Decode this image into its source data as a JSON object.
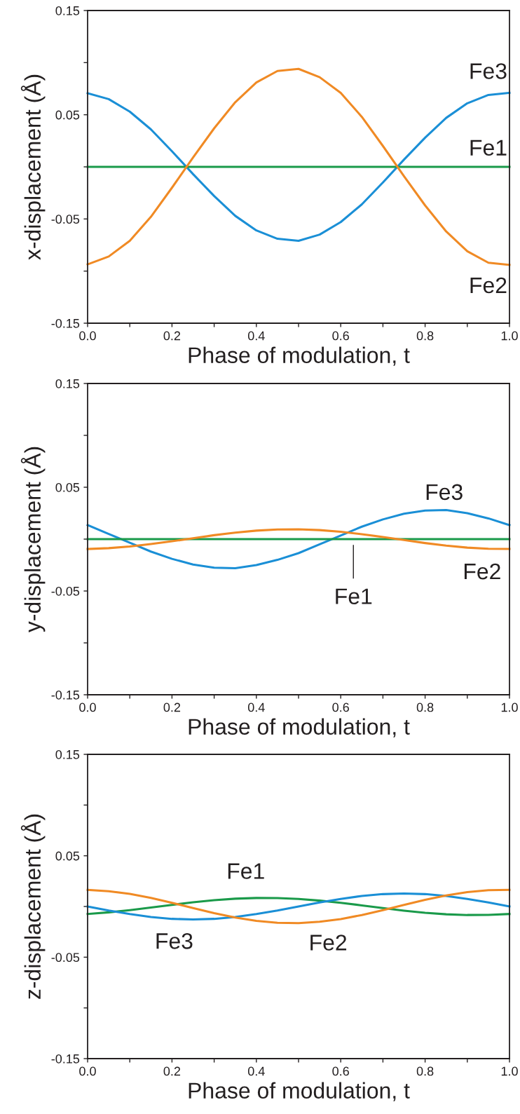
{
  "chart_data": [
    {
      "type": "line",
      "xlabel": "Phase of modulation, t",
      "ylabel": "x-displacement (Å)",
      "x": [
        0,
        0.05,
        0.1,
        0.15,
        0.2,
        0.25,
        0.3,
        0.35,
        0.4,
        0.45,
        0.5,
        0.55,
        0.6,
        0.65,
        0.7,
        0.75,
        0.8,
        0.85,
        0.9,
        0.95,
        1.0
      ],
      "series": [
        {
          "name": "Fe3",
          "color": "#1a8fd6",
          "values": [
            0.0707,
            0.065,
            0.053,
            0.036,
            0.015,
            -0.007,
            -0.028,
            -0.047,
            -0.061,
            -0.069,
            -0.071,
            -0.065,
            -0.053,
            -0.036,
            -0.015,
            0.007,
            0.028,
            0.047,
            0.061,
            0.069,
            0.071
          ]
        },
        {
          "name": "Fe1",
          "color": "#1a9a4a",
          "values": [
            0,
            0,
            0,
            0,
            0,
            0,
            0,
            0,
            0,
            0,
            0,
            0,
            0,
            0,
            0,
            0,
            0,
            0,
            0,
            0,
            0
          ]
        },
        {
          "name": "Fe2",
          "color": "#f08a24",
          "values": [
            -0.0936,
            -0.086,
            -0.071,
            -0.048,
            -0.02,
            0.009,
            0.037,
            0.062,
            0.081,
            0.092,
            0.094,
            0.086,
            0.071,
            0.048,
            0.02,
            -0.009,
            -0.037,
            -0.062,
            -0.081,
            -0.092,
            -0.094
          ]
        }
      ],
      "xlim": [
        0,
        1.0
      ],
      "ylim": [
        -0.15,
        0.15
      ],
      "xticks": [
        {
          "value": 0,
          "label": "0.0"
        },
        {
          "value": 0.1,
          "label": null
        },
        {
          "value": 0.2,
          "label": "0.2"
        },
        {
          "value": 0.3,
          "label": null
        },
        {
          "value": 0.4,
          "label": "0.4"
        },
        {
          "value": 0.5,
          "label": null
        },
        {
          "value": 0.6,
          "label": "0.6"
        },
        {
          "value": 0.7,
          "label": null
        },
        {
          "value": 0.8,
          "label": "0.8"
        },
        {
          "value": 0.9,
          "label": null
        },
        {
          "value": 1.0,
          "label": "1.0"
        }
      ],
      "yticks": [
        -0.15,
        {
          "value": -0.1,
          "label": null
        },
        -0.05,
        {
          "value": 0,
          "label": null
        },
        0.05,
        {
          "value": 0.1,
          "label": null
        },
        0.15
      ],
      "grid": false,
      "legend": false,
      "marker": "none",
      "line_style": "solid"
    },
    {
      "type": "line",
      "xlabel": "Phase of modulation, t",
      "ylabel": "y-displacement (Å)",
      "x": [
        0,
        0.05,
        0.1,
        0.15,
        0.2,
        0.25,
        0.3,
        0.35,
        0.4,
        0.45,
        0.5,
        0.55,
        0.6,
        0.65,
        0.7,
        0.75,
        0.8,
        0.85,
        0.9,
        0.95,
        1.0
      ],
      "series": [
        {
          "name": "Fe3",
          "color": "#1a8fd6",
          "values": [
            0.0135,
            0.005,
            -0.0035,
            -0.012,
            -0.019,
            -0.0245,
            -0.0275,
            -0.028,
            -0.025,
            -0.02,
            -0.0135,
            -0.005,
            0.0035,
            0.012,
            0.019,
            0.0245,
            0.0275,
            0.028,
            0.025,
            0.02,
            0.0135
          ]
        },
        {
          "name": "Fe1",
          "color": "#1a9a4a",
          "values": [
            0,
            0,
            0,
            0,
            0,
            0,
            0,
            0,
            0,
            0,
            0,
            0,
            0,
            0,
            0,
            0,
            0,
            0,
            0,
            0,
            0
          ]
        },
        {
          "name": "Fe2",
          "color": "#f08a24",
          "values": [
            -0.0095,
            -0.0087,
            -0.0071,
            -0.0048,
            -0.0021,
            0.0009,
            0.0038,
            0.0063,
            0.0082,
            0.0093,
            0.0095,
            0.0087,
            0.0071,
            0.0048,
            0.0021,
            -0.0009,
            -0.0038,
            -0.0063,
            -0.0082,
            -0.0093,
            -0.0095
          ]
        }
      ],
      "xlim": [
        0,
        1.0
      ],
      "ylim": [
        -0.15,
        0.15
      ],
      "xticks": [
        {
          "value": 0,
          "label": "0.0"
        },
        {
          "value": 0.1,
          "label": null
        },
        {
          "value": 0.2,
          "label": "0.2"
        },
        {
          "value": 0.3,
          "label": null
        },
        {
          "value": 0.4,
          "label": "0.4"
        },
        {
          "value": 0.5,
          "label": null
        },
        {
          "value": 0.6,
          "label": "0.6"
        },
        {
          "value": 0.7,
          "label": null
        },
        {
          "value": 0.8,
          "label": "0.8"
        },
        {
          "value": 0.9,
          "label": null
        },
        {
          "value": 1.0,
          "label": "1.0"
        }
      ],
      "yticks": [
        -0.15,
        {
          "value": -0.1,
          "label": null
        },
        -0.05,
        {
          "value": 0,
          "label": null
        },
        0.05,
        {
          "value": 0.1,
          "label": null
        },
        0.15
      ],
      "grid": false,
      "legend": false,
      "marker": "none",
      "line_style": "solid"
    },
    {
      "type": "line",
      "xlabel": "Phase of modulation, t",
      "ylabel": "z-displacement (Å)",
      "x": [
        0,
        0.05,
        0.1,
        0.15,
        0.2,
        0.25,
        0.3,
        0.35,
        0.4,
        0.45,
        0.5,
        0.55,
        0.6,
        0.65,
        0.7,
        0.75,
        0.8,
        0.85,
        0.9,
        0.95,
        1.0
      ],
      "series": [
        {
          "name": "Fe1",
          "color": "#1a9a4a",
          "values": [
            -0.0074,
            -0.0058,
            -0.0036,
            -0.0011,
            0.0016,
            0.0041,
            0.0062,
            0.0077,
            0.0084,
            0.0083,
            0.0074,
            0.0058,
            0.0036,
            0.0011,
            -0.0016,
            -0.0041,
            -0.0062,
            -0.0077,
            -0.0084,
            -0.0083,
            -0.0074
          ]
        },
        {
          "name": "Fe3",
          "color": "#1a8fd6",
          "values": [
            0,
            -0.004,
            -0.0075,
            -0.0104,
            -0.0122,
            -0.0128,
            -0.0122,
            -0.0104,
            -0.0075,
            -0.004,
            0,
            0.004,
            0.0075,
            0.0104,
            0.0122,
            0.0128,
            0.0122,
            0.0104,
            0.0075,
            0.004,
            0
          ]
        },
        {
          "name": "Fe2",
          "color": "#f08a24",
          "values": [
            0.0164,
            0.0151,
            0.0124,
            0.0084,
            0.0036,
            -0.0016,
            -0.0066,
            -0.0109,
            -0.0142,
            -0.0161,
            -0.0164,
            -0.0151,
            -0.0124,
            -0.0084,
            -0.0036,
            0.0016,
            0.0066,
            0.0109,
            0.0142,
            0.0161,
            0.0164
          ]
        }
      ],
      "xlim": [
        0,
        1.0
      ],
      "ylim": [
        -0.15,
        0.15
      ],
      "xticks": [
        {
          "value": 0,
          "label": "0.0"
        },
        {
          "value": 0.1,
          "label": null
        },
        {
          "value": 0.2,
          "label": "0.2"
        },
        {
          "value": 0.3,
          "label": null
        },
        {
          "value": 0.4,
          "label": "0.4"
        },
        {
          "value": 0.5,
          "label": null
        },
        {
          "value": 0.6,
          "label": "0.6"
        },
        {
          "value": 0.7,
          "label": null
        },
        {
          "value": 0.8,
          "label": "0.8"
        },
        {
          "value": 0.9,
          "label": null
        },
        {
          "value": 1.0,
          "label": "1.0"
        }
      ],
      "yticks": [
        -0.15,
        {
          "value": -0.1,
          "label": null
        },
        -0.05,
        {
          "value": 0,
          "label": null
        },
        0.05,
        {
          "value": 0.1,
          "label": null
        },
        0.15
      ],
      "grid": false,
      "legend": false,
      "marker": "none",
      "line_style": "solid"
    }
  ]
}
